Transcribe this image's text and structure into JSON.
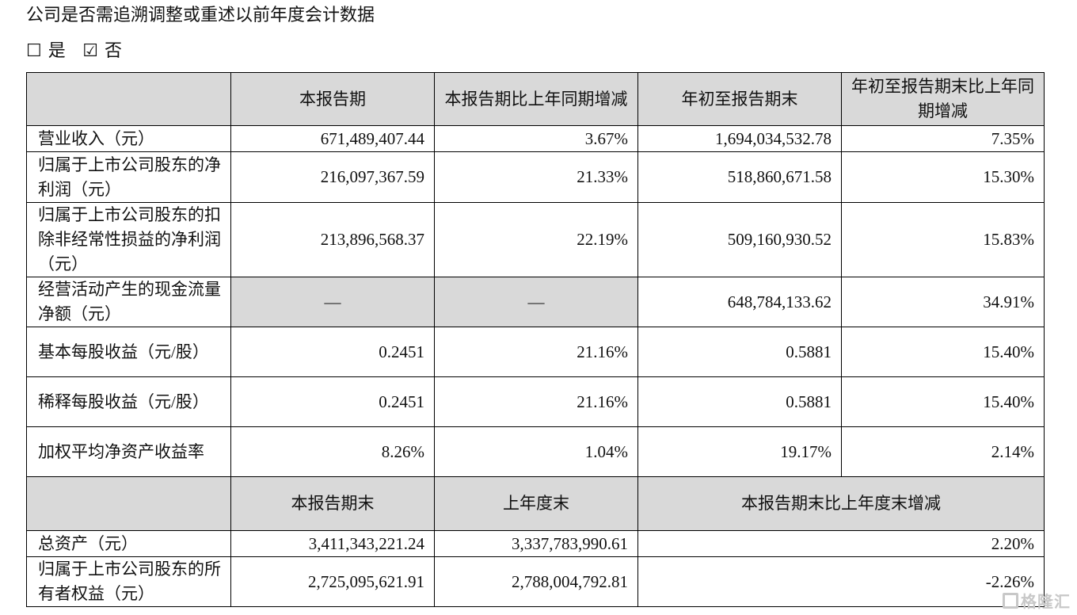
{
  "title": "公司是否需追溯调整或重述以前年度会计数据",
  "options": [
    {
      "label": "是",
      "checked": false
    },
    {
      "label": "否",
      "checked": true
    }
  ],
  "table1": {
    "headers": [
      "",
      "本报告期",
      "本报告期比上年同期增减",
      "年初至报告期末",
      "年初至报告期末比上年同期增减"
    ],
    "rows": [
      [
        "营业收入（元）",
        "671,489,407.44",
        "3.67%",
        "1,694,034,532.78",
        "7.35%"
      ],
      [
        "归属于上市公司股东的净利润（元）",
        "216,097,367.59",
        "21.33%",
        "518,860,671.58",
        "15.30%"
      ],
      [
        "归属于上市公司股东的扣除非经常性损益的净利润（元）",
        "213,896,568.37",
        "22.19%",
        "509,160,930.52",
        "15.83%"
      ],
      [
        "经营活动产生的现金流量净额（元）",
        "—",
        "—",
        "648,784,133.62",
        "34.91%"
      ],
      [
        "基本每股收益（元/股）",
        "0.2451",
        "21.16%",
        "0.5881",
        "15.40%"
      ],
      [
        "稀释每股收益（元/股）",
        "0.2451",
        "21.16%",
        "0.5881",
        "15.40%"
      ],
      [
        "加权平均净资产收益率",
        "8.26%",
        "1.04%",
        "19.17%",
        "2.14%"
      ]
    ]
  },
  "table2": {
    "headers": [
      "",
      "本报告期末",
      "上年度末",
      "本报告期末比上年度末增减"
    ],
    "rows": [
      [
        "总资产（元）",
        "3,411,343,221.24",
        "3,337,783,990.61",
        "2.20%"
      ],
      [
        "归属于上市公司股东的所有者权益（元）",
        "2,725,095,621.91",
        "2,788,004,792.81",
        "-2.26%"
      ]
    ]
  },
  "watermark": "格隆汇"
}
